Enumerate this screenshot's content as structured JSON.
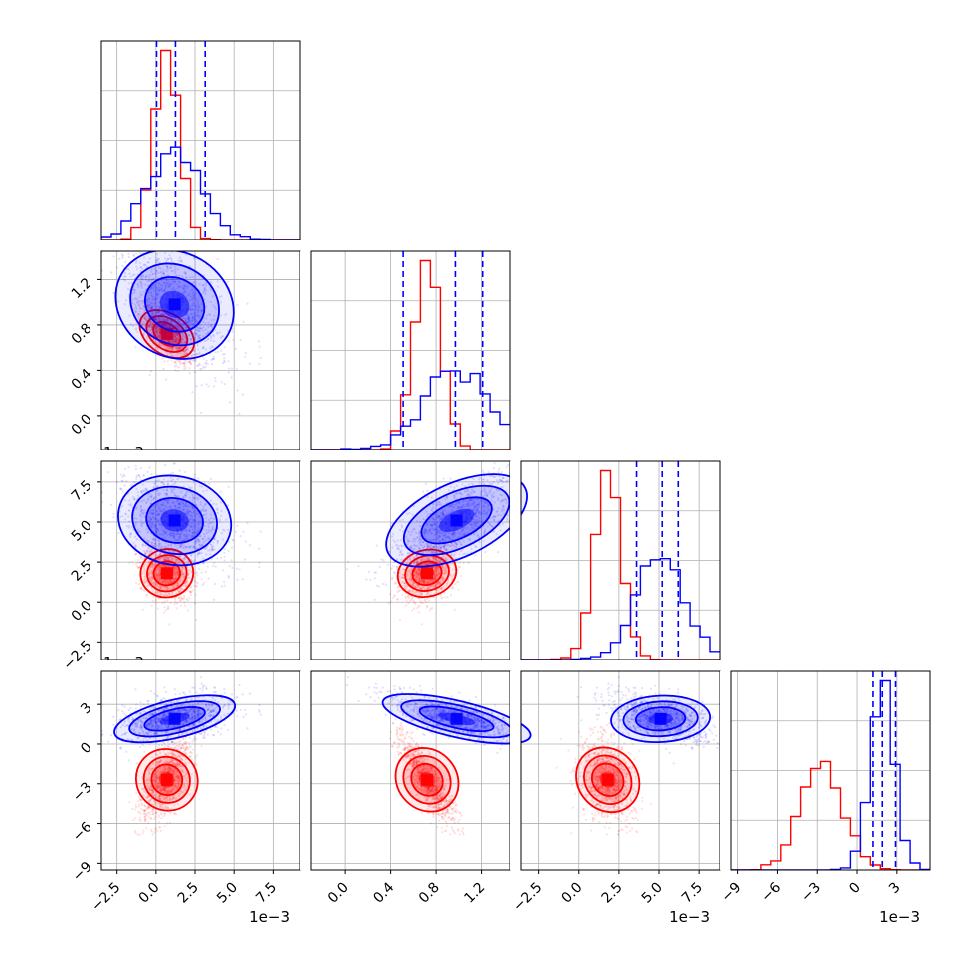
{
  "chart_data": {
    "type": "corner",
    "grid": true,
    "colors": {
      "red": "#ff0000",
      "blue": "#0000ff",
      "grid": "#b0b0b0",
      "axes": "#000000"
    },
    "series": [
      {
        "color": "#ff0000",
        "params": [
          {
            "mean": 0.0007,
            "sd": 0.0008,
            "min": -0.0015,
            "max": 0.0045
          },
          {
            "mean": 0.72,
            "sd": 0.12,
            "min": 0.15,
            "max": 0.95
          },
          {
            "mean": 0.0018,
            "sd": 0.0008,
            "min": -0.003,
            "max": 0.0045
          },
          {
            "mean": -0.0027,
            "sd": 0.0016,
            "min": -0.0085,
            "max": 0.001
          }
        ],
        "quantiles_shown": false
      },
      {
        "color": "#0000ff",
        "params": [
          {
            "mean": 0.0012,
            "sd": 0.0017,
            "min": -0.003,
            "max": 0.0085
          },
          {
            "mean": 0.98,
            "sd": 0.28,
            "min": -0.2,
            "max": 1.4
          },
          {
            "mean": 0.0051,
            "sd": 0.0015,
            "min": -0.001,
            "max": 0.009
          },
          {
            "mean": 0.0019,
            "sd": 0.0009,
            "min": 0.0005,
            "max": 0.0045
          }
        ],
        "quantiles": [
          [
            4e-05,
            0.00125,
            0.00315
          ],
          [
            0.51,
            0.97,
            1.21
          ],
          [
            0.0036,
            0.0052,
            0.0062
          ],
          [
            0.0012,
            0.0019,
            0.0029
          ]
        ]
      }
    ],
    "axes": [
      {
        "range": [
          -0.0035,
          0.0092
        ],
        "ticks": [
          -0.0025,
          0.0,
          0.0025,
          0.005,
          0.0075
        ],
        "tick_labels": [
          "−2.5",
          "0.0",
          "2.5",
          "5.0",
          "7.5"
        ],
        "offset_label": "1e−3"
      },
      {
        "range": [
          -0.3,
          1.45
        ],
        "ticks": [
          0.0,
          0.4,
          0.8,
          1.2
        ],
        "tick_labels": [
          "0.0",
          "0.4",
          "0.8",
          "1.2"
        ],
        "offset_label": ""
      },
      {
        "range": [
          -0.0036,
          0.0088
        ],
        "ticks": [
          -0.0025,
          0.0,
          0.0025,
          0.005,
          0.0075
        ],
        "tick_labels": [
          "−2.5",
          "0.0",
          "2.5",
          "5.0",
          "7.5"
        ],
        "offset_label": "1e−3"
      },
      {
        "range": [
          -0.0095,
          0.0055
        ],
        "ticks": [
          -0.009,
          -0.006,
          -0.003,
          0.0,
          0.003
        ],
        "tick_labels": [
          "−9",
          "−6",
          "−3",
          "0",
          "3"
        ],
        "offset_label": "1e−3"
      }
    ]
  }
}
